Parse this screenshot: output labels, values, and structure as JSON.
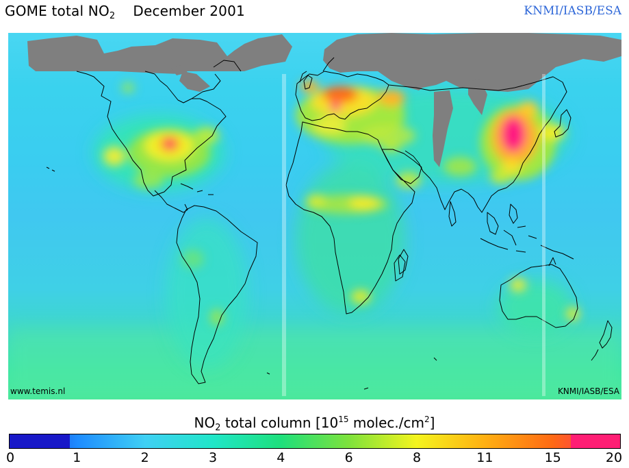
{
  "header": {
    "title_main": "GOME total NO",
    "title_sub": "2",
    "title_date": "December 2001",
    "credit": "KNMI/IASB/ESA"
  },
  "map": {
    "website_label": "www.temis.nl",
    "credit_label": "KNMI/IASB/ESA",
    "land_mask_color": "#7f7f7f",
    "ocean_background_color": "#35d3e8"
  },
  "colorbar": {
    "title_pre": "NO",
    "title_sub": "2",
    "title_mid": " total column [10",
    "title_sup": "15",
    "title_unit": " molec./cm",
    "title_sup2": "2",
    "title_end": "]",
    "tick_labels": [
      "0",
      "1",
      "2",
      "3",
      "4",
      "6",
      "8",
      "11",
      "15",
      "20"
    ],
    "segment_colors": [
      "#1818c8",
      "#1e8cff",
      "#3fd0f4",
      "#20e6c8",
      "#1ee07c",
      "#7ee23c",
      "#f4f41e",
      "#ffb012",
      "#ff6a14",
      "#ff1e74"
    ]
  }
}
